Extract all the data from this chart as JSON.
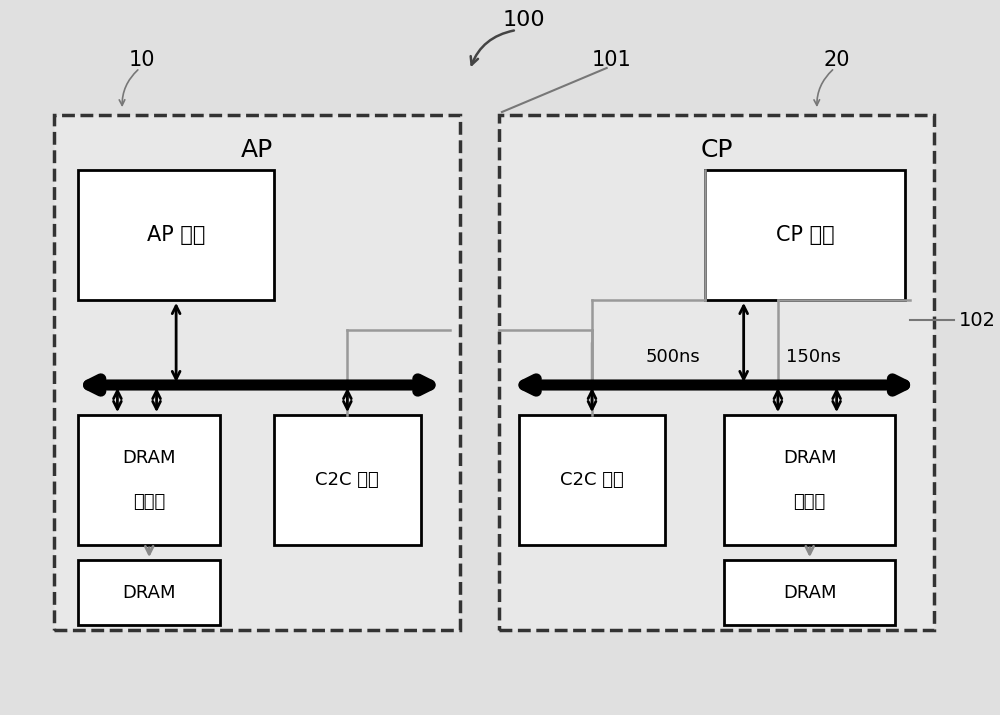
{
  "title_label": "100",
  "ap_label": "10",
  "cp_label": "20",
  "ref101": "101",
  "ref102": "102",
  "ap_text": "AP",
  "cp_text": "CP",
  "ap_sys_text": "AP 系统",
  "cp_sys_text": "CP 系统",
  "dram_ctrl_l1": "DRAM",
  "dram_ctrl_l2": "控制器",
  "dram_left": "DRAM",
  "dram_right": "DRAM",
  "c2c_left": "C2C 接口",
  "c2c_right": "C2C 接口",
  "ns500": "500ns",
  "ns150": "150ns",
  "bg_color": "#e8e8e8",
  "box_color": "#000000",
  "gray_color": "#999999"
}
